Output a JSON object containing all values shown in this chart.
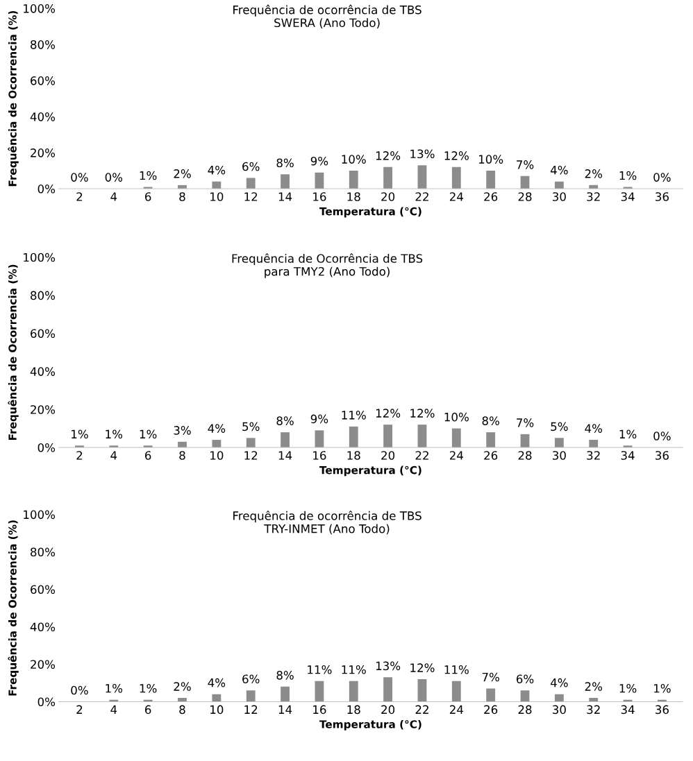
{
  "chart_data": [
    {
      "type": "bar",
      "title": "Frequência de ocorrência de TBS\nSWERA (Ano Todo)",
      "xlabel": "Temperatura (°C)",
      "ylabel": "Frequência de Ocorrencia (%)",
      "categories": [
        "2",
        "4",
        "6",
        "8",
        "10",
        "12",
        "14",
        "16",
        "18",
        "20",
        "22",
        "24",
        "26",
        "28",
        "30",
        "32",
        "34",
        "36"
      ],
      "values": [
        0,
        0,
        1,
        2,
        4,
        6,
        8,
        9,
        10,
        12,
        13,
        12,
        10,
        7,
        4,
        2,
        1,
        0
      ],
      "value_labels": [
        "0%",
        "0%",
        "1%",
        "2%",
        "4%",
        "6%",
        "8%",
        "9%",
        "10%",
        "12%",
        "13%",
        "12%",
        "10%",
        "7%",
        "4%",
        "2%",
        "1%",
        "0%"
      ],
      "color": "#8c8c8c",
      "ylim": [
        0,
        100
      ],
      "yticks": [
        {
          "value": 0,
          "label": "0%"
        },
        {
          "value": 20,
          "label": "20%"
        },
        {
          "value": 40,
          "label": "40%"
        },
        {
          "value": 60,
          "label": "60%"
        },
        {
          "value": 80,
          "label": "80%"
        },
        {
          "value": 100,
          "label": "100%"
        }
      ]
    },
    {
      "type": "bar",
      "title": "Frequência de Ocorrência de TBS\npara TMY2 (Ano Todo)",
      "xlabel": "Temperatura (°C)",
      "ylabel": "Frequência de Ocorrencia (%)",
      "categories": [
        "2",
        "4",
        "6",
        "8",
        "10",
        "12",
        "14",
        "16",
        "18",
        "20",
        "22",
        "24",
        "26",
        "28",
        "30",
        "32",
        "34",
        "36"
      ],
      "values": [
        1,
        1,
        1,
        3,
        4,
        5,
        8,
        9,
        11,
        12,
        12,
        10,
        8,
        7,
        5,
        4,
        1,
        0
      ],
      "value_labels": [
        "1%",
        "1%",
        "1%",
        "3%",
        "4%",
        "5%",
        "8%",
        "9%",
        "11%",
        "12%",
        "12%",
        "10%",
        "8%",
        "7%",
        "5%",
        "4%",
        "1%",
        "0%"
      ],
      "color": "#8c8c8c",
      "ylim": [
        0,
        100
      ],
      "yticks": [
        {
          "value": 0,
          "label": "0%"
        },
        {
          "value": 20,
          "label": "20%"
        },
        {
          "value": 40,
          "label": "40%"
        },
        {
          "value": 60,
          "label": "60%"
        },
        {
          "value": 80,
          "label": "80%"
        },
        {
          "value": 100,
          "label": "100%"
        }
      ]
    },
    {
      "type": "bar",
      "title": "Frequência de ocorrência de TBS\nTRY-INMET (Ano Todo)",
      "xlabel": "Temperatura (°C)",
      "ylabel": "Frequência de Ocorrencia (%)",
      "categories": [
        "2",
        "4",
        "6",
        "8",
        "10",
        "12",
        "14",
        "16",
        "18",
        "20",
        "22",
        "24",
        "26",
        "28",
        "30",
        "32",
        "34",
        "36"
      ],
      "values": [
        0,
        1,
        1,
        2,
        4,
        6,
        8,
        11,
        11,
        13,
        12,
        11,
        7,
        6,
        4,
        2,
        1,
        1
      ],
      "value_labels": [
        "0%",
        "1%",
        "1%",
        "2%",
        "4%",
        "6%",
        "8%",
        "11%",
        "11%",
        "13%",
        "12%",
        "11%",
        "7%",
        "6%",
        "4%",
        "2%",
        "1%",
        "1%"
      ],
      "color": "#8c8c8c",
      "ylim": [
        0,
        100
      ],
      "yticks": [
        {
          "value": 0,
          "label": "0%"
        },
        {
          "value": 20,
          "label": "20%"
        },
        {
          "value": 40,
          "label": "40%"
        },
        {
          "value": 60,
          "label": "60%"
        },
        {
          "value": 80,
          "label": "80%"
        },
        {
          "value": 100,
          "label": "100%"
        }
      ]
    }
  ]
}
